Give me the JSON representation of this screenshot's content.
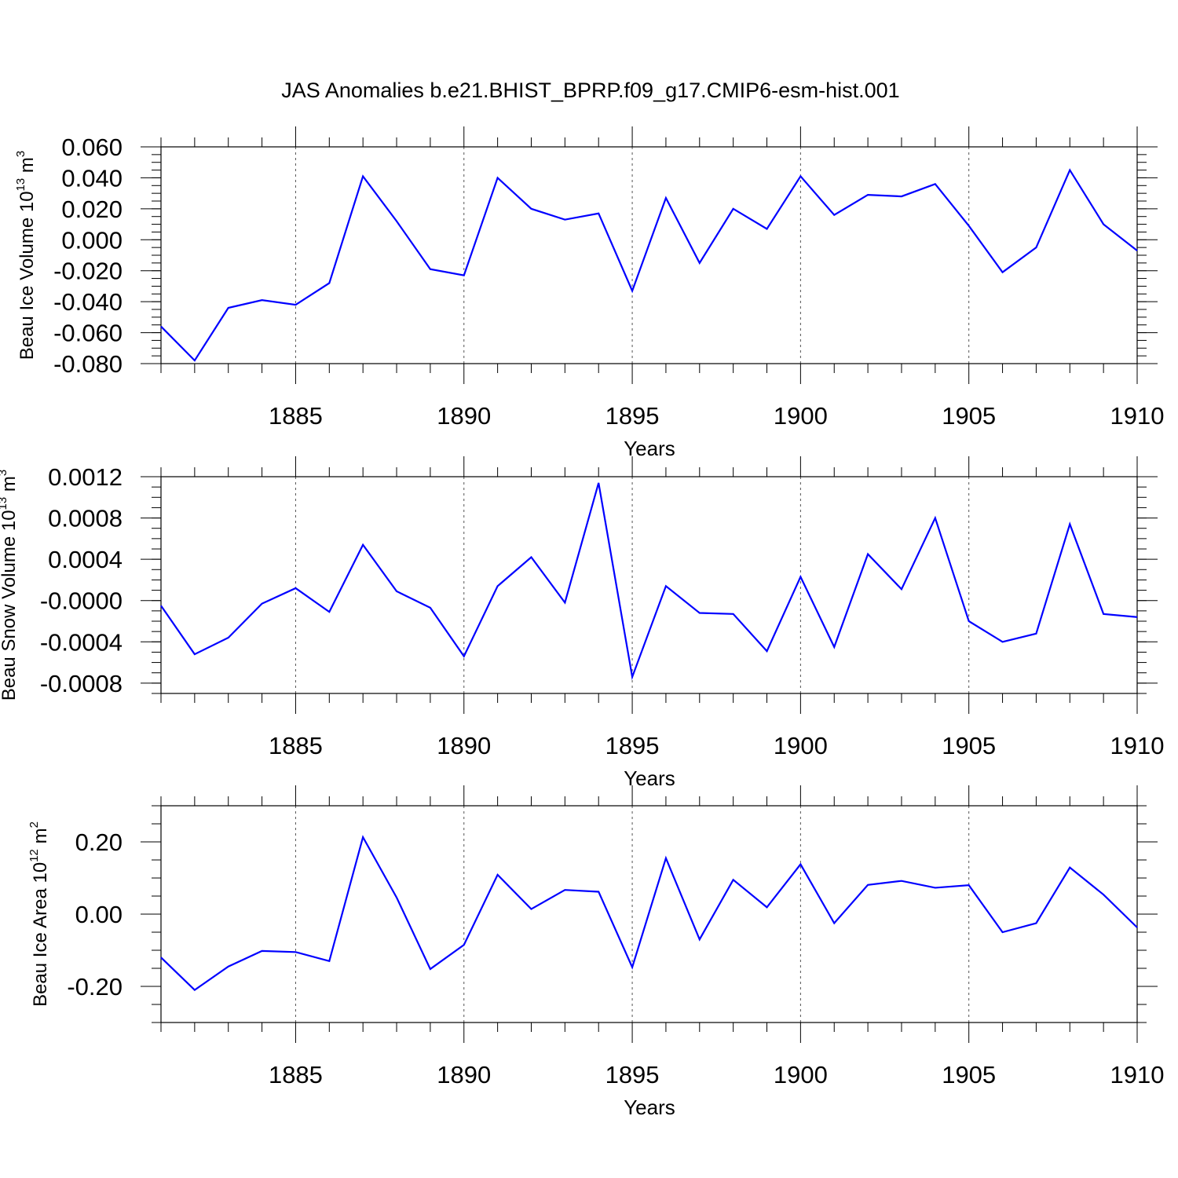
{
  "title": "JAS Anomalies b.e21.BHIST_BPRP.f09_g17.CMIP6-esm-hist.001",
  "line_color": "#0000ff",
  "years": [
    1881,
    1882,
    1883,
    1884,
    1885,
    1886,
    1887,
    1888,
    1889,
    1890,
    1891,
    1892,
    1893,
    1894,
    1895,
    1896,
    1897,
    1898,
    1899,
    1900,
    1901,
    1902,
    1903,
    1904,
    1905,
    1906,
    1907,
    1908,
    1909,
    1910
  ],
  "chart_data": [
    {
      "type": "line",
      "ylabel": {
        "main": "Beau Ice Volume 10",
        "sup": "13",
        "unit": " m",
        "unit_sup": "3"
      },
      "xlabel": "Years",
      "xlim": [
        1881,
        1910
      ],
      "ylim": [
        -0.08,
        0.06
      ],
      "yticks": [
        -0.08,
        -0.06,
        -0.04,
        -0.02,
        0.0,
        0.02,
        0.04,
        0.06
      ],
      "ytick_labels": [
        "-0.080",
        "-0.060",
        "-0.040",
        "-0.020",
        "0.000",
        "0.020",
        "0.040",
        "0.060"
      ],
      "yminor_step": 0.005,
      "xticks": [
        1885,
        1890,
        1895,
        1900,
        1905,
        1910
      ],
      "xtick_labels": [
        "1885",
        "1890",
        "1895",
        "1900",
        "1905",
        "1910"
      ],
      "grid_x": [
        1885,
        1890,
        1895,
        1900,
        1905
      ],
      "series": [
        {
          "name": "Beau Ice Volume",
          "values": [
            -0.056,
            -0.078,
            -0.044,
            -0.039,
            -0.042,
            -0.028,
            0.041,
            0.012,
            -0.019,
            -0.023,
            0.04,
            0.02,
            0.013,
            0.017,
            -0.033,
            0.027,
            -0.015,
            0.02,
            0.007,
            0.041,
            0.016,
            0.029,
            0.028,
            0.036,
            0.009,
            -0.021,
            -0.005,
            0.045,
            0.01,
            -0.007
          ]
        }
      ]
    },
    {
      "type": "line",
      "ylabel": {
        "main": "Beau Snow Volume 10",
        "sup": "13",
        "unit": " m",
        "unit_sup": "3"
      },
      "xlabel": "Years",
      "xlim": [
        1881,
        1910
      ],
      "ylim": [
        -0.0009,
        0.0012
      ],
      "yticks": [
        -0.0008,
        -0.0004,
        0.0,
        0.0004,
        0.0008,
        0.0012
      ],
      "ytick_labels": [
        "-0.0008",
        "-0.0004",
        "-0.0000",
        "0.0004",
        "0.0008",
        "0.0012"
      ],
      "yminor_step": 0.0001,
      "xticks": [
        1885,
        1890,
        1895,
        1900,
        1905,
        1910
      ],
      "xtick_labels": [
        "1885",
        "1890",
        "1895",
        "1900",
        "1905",
        "1910"
      ],
      "grid_x": [
        1885,
        1890,
        1895,
        1900,
        1905
      ],
      "series": [
        {
          "name": "Beau Snow Volume",
          "values": [
            -5e-05,
            -0.00052,
            -0.00036,
            -3e-05,
            0.00012,
            -0.00011,
            0.00054,
            9e-05,
            -7e-05,
            -0.00054,
            0.00014,
            0.00042,
            -2e-05,
            0.00114,
            -0.00074,
            0.00014,
            -0.00012,
            -0.00013,
            -0.00049,
            0.00023,
            -0.00045,
            0.00045,
            0.00011,
            0.0008,
            -0.0002,
            -0.0004,
            -0.00032,
            0.00074,
            -0.00013,
            -0.00016
          ]
        }
      ]
    },
    {
      "type": "line",
      "ylabel": {
        "main": "Beau Ice Area 10",
        "sup": "12",
        "unit": " m",
        "unit_sup": "2"
      },
      "xlabel": "Years",
      "xlim": [
        1881,
        1910
      ],
      "ylim": [
        -0.3,
        0.3
      ],
      "yticks": [
        -0.2,
        0.0,
        0.2
      ],
      "ytick_labels": [
        "-0.20",
        "0.00",
        "0.20"
      ],
      "yminor_step": 0.05,
      "xticks": [
        1885,
        1890,
        1895,
        1900,
        1905,
        1910
      ],
      "xtick_labels": [
        "1885",
        "1890",
        "1895",
        "1900",
        "1905",
        "1910"
      ],
      "grid_x": [
        1885,
        1890,
        1895,
        1900,
        1905
      ],
      "series": [
        {
          "name": "Beau Ice Area",
          "values": [
            -0.12,
            -0.21,
            -0.145,
            -0.102,
            -0.105,
            -0.13,
            0.213,
            0.046,
            -0.152,
            -0.085,
            0.109,
            0.014,
            0.067,
            0.062,
            -0.147,
            0.155,
            -0.07,
            0.095,
            0.019,
            0.138,
            -0.025,
            0.081,
            0.092,
            0.073,
            0.08,
            -0.05,
            -0.025,
            0.129,
            0.054,
            -0.037
          ]
        }
      ]
    }
  ]
}
